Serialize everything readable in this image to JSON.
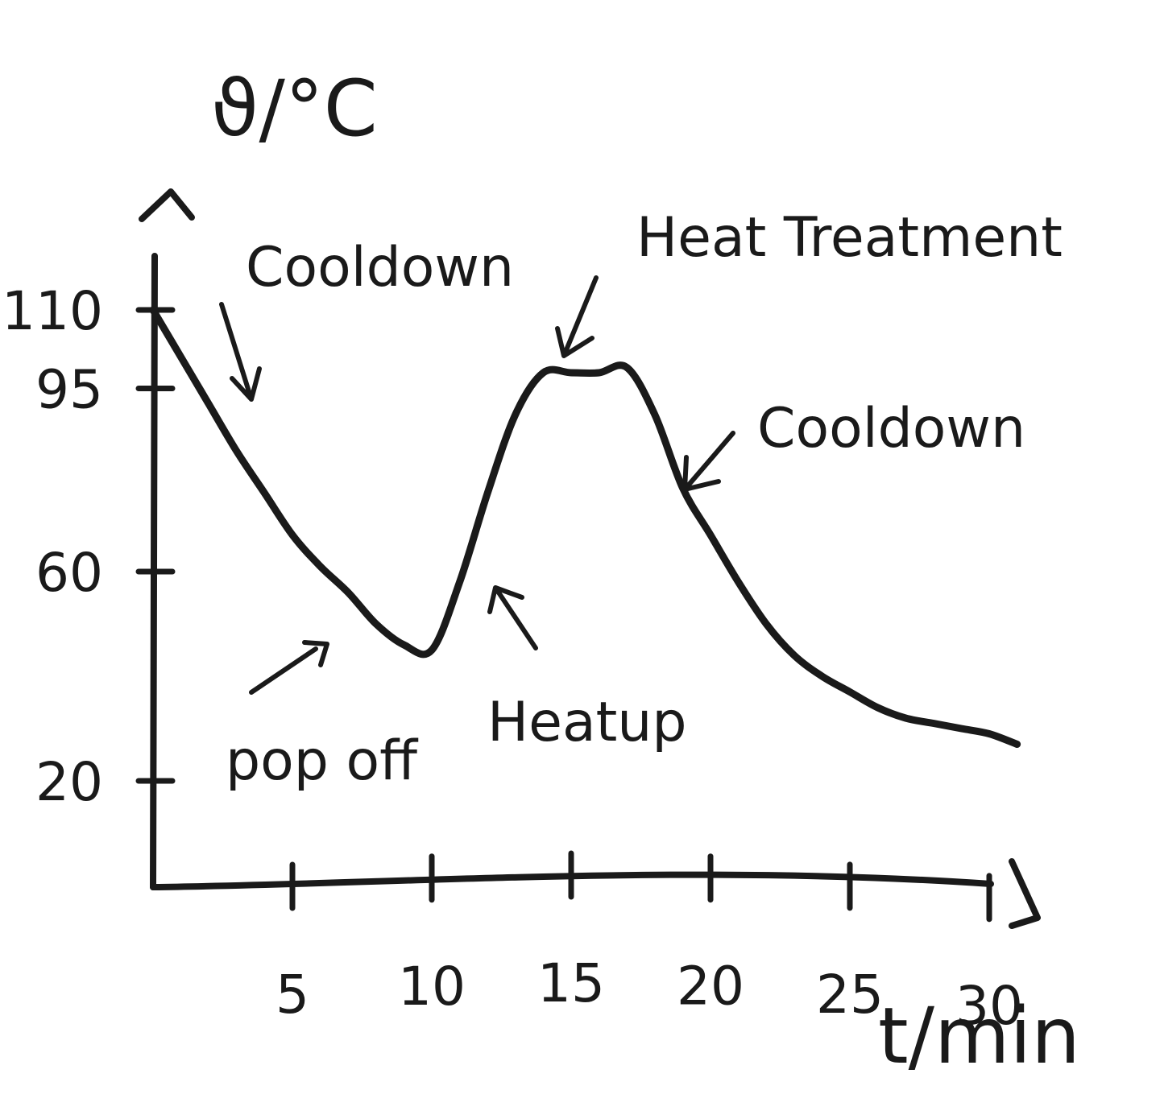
{
  "chart_data": {
    "type": "line",
    "xlabel": "t/min",
    "ylabel": "ϑ/°C",
    "xlim": [
      0,
      32
    ],
    "ylim": [
      0,
      125
    ],
    "x_ticks": [
      5,
      10,
      15,
      20,
      25,
      30
    ],
    "x_tick_labels": [
      "5",
      "10",
      "15",
      "20",
      "25",
      "30"
    ],
    "y_ticks": [
      20,
      60,
      95,
      110
    ],
    "y_tick_labels": [
      "20",
      "60",
      "95",
      "110"
    ],
    "grid": false,
    "series": [
      {
        "values": [
          {
            "x": 0,
            "y": 110
          },
          {
            "x": 1,
            "y": 101
          },
          {
            "x": 2,
            "y": 92
          },
          {
            "x": 3,
            "y": 83
          },
          {
            "x": 4,
            "y": 75
          },
          {
            "x": 5,
            "y": 67
          },
          {
            "x": 6,
            "y": 61
          },
          {
            "x": 7,
            "y": 56
          },
          {
            "x": 8,
            "y": 50
          },
          {
            "x": 9,
            "y": 46
          },
          {
            "x": 10,
            "y": 45
          },
          {
            "x": 11,
            "y": 58
          },
          {
            "x": 12,
            "y": 75
          },
          {
            "x": 13,
            "y": 90
          },
          {
            "x": 14,
            "y": 98
          },
          {
            "x": 15,
            "y": 98
          },
          {
            "x": 16,
            "y": 98
          },
          {
            "x": 17,
            "y": 99
          },
          {
            "x": 18,
            "y": 90
          },
          {
            "x": 19,
            "y": 76
          },
          {
            "x": 20,
            "y": 67
          },
          {
            "x": 21,
            "y": 58
          },
          {
            "x": 22,
            "y": 50
          },
          {
            "x": 23,
            "y": 44
          },
          {
            "x": 24,
            "y": 40
          },
          {
            "x": 25,
            "y": 37
          },
          {
            "x": 26,
            "y": 34
          },
          {
            "x": 27,
            "y": 32
          },
          {
            "x": 28,
            "y": 31
          },
          {
            "x": 29,
            "y": 30
          },
          {
            "x": 30,
            "y": 29
          },
          {
            "x": 31,
            "y": 27
          }
        ]
      }
    ],
    "annotations": [
      {
        "text": "Cooldown",
        "x": 3,
        "y": 101
      },
      {
        "text": "Heat Treatment",
        "x": 15,
        "y": 98
      },
      {
        "text": "Cooldown",
        "x": 19.5,
        "y": 78
      },
      {
        "text": "pop off",
        "x": 6.3,
        "y": 53
      },
      {
        "text": "Heatup",
        "x": 12,
        "y": 60
      }
    ]
  },
  "colors": {
    "ink": "#1a1a1a",
    "paper": "#ffffff"
  }
}
